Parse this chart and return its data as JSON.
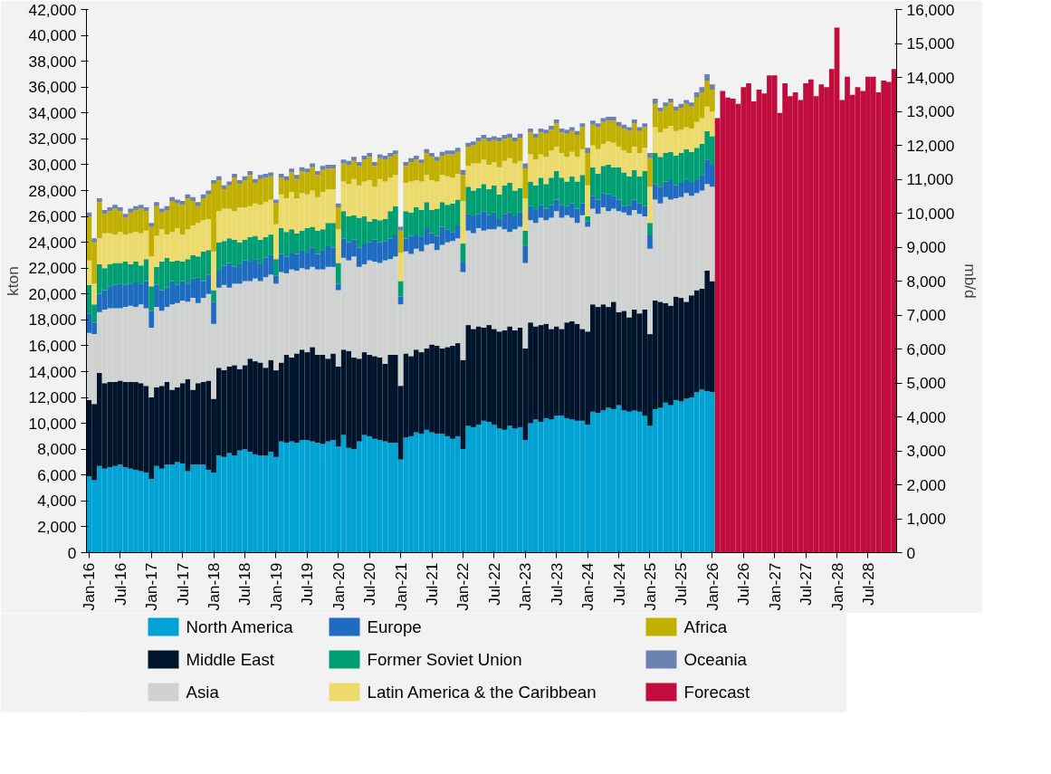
{
  "chart_data": {
    "type": "bar",
    "stacked": true,
    "ylabel": "kton",
    "y2label": "mb/d",
    "legend": "bottom",
    "grid": false,
    "categories": [
      "Jan-16",
      null,
      null,
      null,
      null,
      null,
      "Jul-16",
      null,
      null,
      null,
      null,
      null,
      "Jan-17",
      null,
      null,
      null,
      null,
      null,
      "Jul-17",
      null,
      null,
      null,
      null,
      null,
      "Jan-18",
      null,
      null,
      null,
      null,
      null,
      "Jul-18",
      null,
      null,
      null,
      null,
      null,
      "Jan-19",
      null,
      null,
      null,
      null,
      null,
      "Jul-19",
      null,
      null,
      null,
      null,
      null,
      "Jan-20",
      null,
      null,
      null,
      null,
      null,
      "Jul-20",
      null,
      null,
      null,
      null,
      null,
      "Jan-21",
      null,
      null,
      null,
      null,
      null,
      "Jul-21",
      null,
      null,
      null,
      null,
      null,
      "Jan-22",
      null,
      null,
      null,
      null,
      null,
      "Jul-22",
      null,
      null,
      null,
      null,
      null,
      "Jan-23",
      null,
      null,
      null,
      null,
      null,
      "Jul-23",
      null,
      null,
      null,
      null,
      null,
      "Jan-24",
      null,
      null,
      null,
      null,
      null,
      "Jul-24",
      null,
      null,
      null,
      null,
      null,
      "Jan-25",
      null,
      null,
      null,
      null,
      null,
      "Jul-25",
      null,
      null,
      null,
      null,
      null,
      "Jan-26",
      null,
      null,
      null,
      null,
      null,
      "Jul-26",
      null,
      null,
      null,
      null,
      null,
      "Jan-27",
      null,
      null,
      null,
      null,
      null,
      "Jul-27",
      null,
      null,
      null,
      null,
      null,
      "Jan-28",
      null,
      null,
      null,
      null,
      null,
      "Jul-28",
      null,
      null,
      null,
      null,
      null
    ],
    "ylim": [
      0,
      42000
    ],
    "yticks": [
      0,
      {
        "value": 2000,
        "label": "2,000"
      },
      {
        "value": 4000,
        "label": "4,000"
      },
      {
        "value": 6000,
        "label": "6,000"
      },
      {
        "value": 8000,
        "label": "8,000"
      },
      {
        "value": 10000,
        "label": "10,000"
      },
      {
        "value": 12000,
        "label": "12,000"
      },
      {
        "value": 14000,
        "label": "14,000"
      },
      {
        "value": 16000,
        "label": "16,000"
      },
      {
        "value": 18000,
        "label": "18,000"
      },
      {
        "value": 20000,
        "label": "20,000"
      },
      {
        "value": 22000,
        "label": "22,000"
      },
      {
        "value": 24000,
        "label": "24,000"
      },
      {
        "value": 26000,
        "label": "26,000"
      },
      {
        "value": 28000,
        "label": "28,000"
      },
      {
        "value": 30000,
        "label": "30,000"
      },
      {
        "value": 32000,
        "label": "32,000"
      },
      {
        "value": 34000,
        "label": "34,000"
      },
      {
        "value": 36000,
        "label": "36,000"
      },
      {
        "value": 38000,
        "label": "38,000"
      },
      {
        "value": 40000,
        "label": "40,000"
      },
      {
        "value": 42000,
        "label": "42,000"
      }
    ],
    "y2lim": [
      0,
      16000
    ],
    "y2ticks": [
      0,
      {
        "value": 1000,
        "label": "1,000"
      },
      {
        "value": 2000,
        "label": "2,000"
      },
      {
        "value": 3000,
        "label": "3,000"
      },
      {
        "value": 4000,
        "label": "4,000"
      },
      {
        "value": 5000,
        "label": "5,000"
      },
      {
        "value": 6000,
        "label": "6,000"
      },
      {
        "value": 7000,
        "label": "7,000"
      },
      {
        "value": 8000,
        "label": "8,000"
      },
      {
        "value": 9000,
        "label": "9,000"
      },
      {
        "value": 10000,
        "label": "10,000"
      },
      {
        "value": 11000,
        "label": "11,000"
      },
      {
        "value": 12000,
        "label": "12,000"
      },
      {
        "value": 13000,
        "label": "13,000"
      },
      {
        "value": 14000,
        "label": "14,000"
      },
      {
        "value": 15000,
        "label": "15,000"
      },
      {
        "value": 16000,
        "label": "16,000"
      }
    ],
    "series": [
      {
        "name": "North America",
        "color": "#00a3d4",
        "values": [
          5900,
          5600,
          6700,
          6500,
          6600,
          6700,
          6800,
          6600,
          6500,
          6400,
          6300,
          6200,
          5700,
          6700,
          6500,
          6800,
          6800,
          7000,
          6900,
          6300,
          6800,
          6800,
          6800,
          6400,
          6200,
          7500,
          7400,
          7700,
          7500,
          7900,
          8000,
          7800,
          7600,
          7500,
          7500,
          7800,
          7400,
          8600,
          8500,
          8600,
          8500,
          8700,
          8700,
          8600,
          8500,
          8400,
          8600,
          8700,
          8200,
          9100,
          8100,
          8000,
          8600,
          9100,
          9000,
          8800,
          8700,
          8600,
          8500,
          8500,
          7200,
          8900,
          9000,
          9300,
          9200,
          9500,
          9300,
          9200,
          9200,
          9000,
          8800,
          9000,
          8000,
          9800,
          9700,
          9900,
          10200,
          10100,
          9900,
          9600,
          9500,
          9800,
          9600,
          9700,
          8700,
          10000,
          10300,
          10100,
          10400,
          10300,
          10600,
          10600,
          10400,
          10300,
          10200,
          10200,
          9900,
          10900,
          10800,
          11000,
          11200,
          11100,
          11400,
          11000,
          10900,
          11000,
          10900,
          10600,
          9800,
          11100,
          11200,
          11600,
          11400,
          11800,
          11700,
          11900,
          12000,
          12400,
          12600,
          12500,
          12400,
          null,
          null,
          null,
          null,
          null,
          null,
          null,
          null,
          null,
          null,
          null,
          null,
          null,
          null,
          null,
          null,
          null,
          null,
          null,
          null,
          null,
          null,
          null,
          null,
          null,
          null,
          null,
          null,
          null,
          null,
          null,
          null,
          null,
          null,
          null
        ]
      },
      {
        "name": "Middle East",
        "color": "#00142b",
        "values": [
          5900,
          5900,
          7200,
          6600,
          6600,
          6500,
          6500,
          6600,
          6700,
          6800,
          6800,
          6700,
          6300,
          6100,
          6400,
          6400,
          5800,
          5800,
          6200,
          7100,
          5800,
          6300,
          6400,
          6900,
          5700,
          6800,
          6700,
          6700,
          7000,
          6300,
          6500,
          7200,
          7200,
          7200,
          6800,
          7100,
          6700,
          6100,
          6800,
          6500,
          6900,
          7000,
          6800,
          7300,
          6800,
          6900,
          6400,
          6700,
          6200,
          6600,
          7500,
          7100,
          6400,
          6400,
          6300,
          6400,
          6400,
          6000,
          6800,
          6800,
          5700,
          6500,
          6200,
          6400,
          6300,
          6300,
          6800,
          6800,
          6600,
          6900,
          7200,
          7200,
          6900,
          7800,
          7600,
          7600,
          7200,
          7500,
          7400,
          7500,
          7700,
          7700,
          7600,
          7700,
          7100,
          7800,
          7200,
          7500,
          7300,
          7000,
          6900,
          6700,
          7400,
          7600,
          7500,
          7100,
          7200,
          8300,
          8200,
          8200,
          7800,
          8300,
          7200,
          7700,
          7300,
          7800,
          7600,
          8200,
          7100,
          8400,
          8200,
          7700,
          7700,
          8000,
          8000,
          7500,
          7900,
          7900,
          7800,
          9300,
          8600,
          null,
          null,
          null,
          null,
          null,
          null,
          null,
          null,
          null,
          null,
          null,
          null,
          null,
          null,
          null,
          null,
          null,
          null,
          null,
          null,
          null,
          null,
          null,
          null,
          null,
          null,
          null,
          null,
          null,
          null,
          null,
          null,
          null,
          null,
          null
        ]
      },
      {
        "name": "Asia",
        "color": "#d0d1d1",
        "values": [
          5200,
          5400,
          4700,
          5700,
          5700,
          5700,
          5600,
          5800,
          5900,
          5800,
          6100,
          6000,
          5400,
          6200,
          5800,
          5800,
          6600,
          6500,
          6400,
          6000,
          7100,
          6200,
          6500,
          6700,
          5800,
          6200,
          6600,
          6100,
          6300,
          6600,
          6500,
          6000,
          6400,
          6300,
          7000,
          6600,
          6700,
          7000,
          6300,
          6800,
          6400,
          6300,
          6400,
          6200,
          6600,
          6600,
          7100,
          6700,
          5900,
          7100,
          7000,
          7800,
          7100,
          6800,
          7300,
          7300,
          7300,
          8000,
          7400,
          7600,
          6300,
          7900,
          7900,
          7800,
          7800,
          8000,
          7800,
          7400,
          8000,
          8100,
          8100,
          8100,
          6800,
          7300,
          7400,
          7600,
          7500,
          7400,
          7700,
          8100,
          7800,
          7300,
          7800,
          7800,
          6600,
          7900,
          8000,
          8300,
          8000,
          8600,
          8900,
          8600,
          8300,
          8000,
          7800,
          8800,
          8100,
          7400,
          7200,
          7500,
          7400,
          7200,
          7800,
          7600,
          7900,
          7700,
          7700,
          7200,
          6600,
          7800,
          7600,
          8200,
          8200,
          7600,
          7800,
          8400,
          7700,
          7500,
          7600,
          6700,
          7300,
          null,
          null,
          null,
          null,
          null,
          null,
          null,
          null,
          null,
          null,
          null,
          null,
          null,
          null,
          null,
          null,
          null,
          null,
          null,
          null,
          null,
          null,
          null,
          null,
          null,
          null,
          null,
          null,
          null,
          null,
          null,
          null,
          null,
          null,
          null
        ]
      },
      {
        "name": "Europe",
        "color": "#1f6bbf",
        "values": [
          1500,
          900,
          1400,
          1500,
          1700,
          1800,
          1900,
          1700,
          1700,
          1900,
          1600,
          2100,
          1300,
          1700,
          1600,
          1500,
          1800,
          1400,
          1500,
          1400,
          1500,
          2000,
          1300,
          1500,
          1700,
          1300,
          1500,
          1900,
          1300,
          1500,
          1600,
          1500,
          1500,
          1300,
          1500,
          1500,
          600,
          1400,
          1300,
          1300,
          1300,
          1400,
          1300,
          1500,
          1200,
          1500,
          1600,
          1500,
          500,
          1500,
          1400,
          1300,
          1500,
          1600,
          1400,
          1700,
          1600,
          1500,
          1600,
          1700,
          600,
          1000,
          1400,
          1100,
          1100,
          1300,
          800,
          1100,
          1400,
          1000,
          700,
          1000,
          800,
          1300,
          1300,
          1100,
          1500,
          1100,
          1300,
          600,
          1200,
          1500,
          1000,
          1100,
          1300,
          1100,
          1000,
          1000,
          900,
          1000,
          900,
          1000,
          700,
          1100,
          1100,
          900,
          400,
          1000,
          1100,
          1100,
          1300,
          1000,
          900,
          500,
          800,
          800,
          800,
          800,
          1100,
          1200,
          1300,
          1200,
          1500,
          1000,
          1100,
          1100,
          1000,
          1000,
          1200,
          1900,
          1700,
          null,
          null,
          null,
          null,
          null,
          null,
          null,
          null,
          null,
          null,
          null,
          null,
          null,
          null,
          null,
          null,
          null,
          null,
          null,
          null,
          null,
          null,
          null,
          null,
          null,
          null,
          null,
          null,
          null,
          null,
          null,
          null,
          null,
          null,
          null
        ]
      },
      {
        "name": "Former Soviet Union",
        "color": "#009e73",
        "values": [
          2200,
          1400,
          2300,
          1700,
          1700,
          1700,
          1600,
          1800,
          1500,
          1600,
          1400,
          1700,
          1900,
          1400,
          2200,
          2300,
          1500,
          1900,
          1500,
          1900,
          1800,
          1600,
          2300,
          1900,
          900,
          2200,
          1900,
          1900,
          2100,
          1700,
          1600,
          1900,
          1800,
          1900,
          1600,
          1600,
          1300,
          2000,
          1900,
          1800,
          1600,
          1500,
          1900,
          1600,
          1800,
          1600,
          1800,
          1900,
          1600,
          2100,
          2000,
          1900,
          2300,
          2100,
          1600,
          1600,
          1700,
          1700,
          2100,
          2200,
          1200,
          2100,
          1800,
          2100,
          2100,
          2000,
          1800,
          2100,
          1900,
          1900,
          2200,
          2000,
          1400,
          2100,
          2000,
          2000,
          2100,
          2000,
          2100,
          1900,
          2200,
          2300,
          2000,
          1900,
          1200,
          1900,
          1900,
          2100,
          1900,
          2100,
          2200,
          2100,
          1900,
          2100,
          2100,
          2200,
          400,
          2200,
          2000,
          2100,
          2300,
          2200,
          2500,
          2600,
          2200,
          2300,
          2100,
          2700,
          900,
          2400,
          2300,
          2200,
          2200,
          2300,
          2300,
          2300,
          2400,
          2500,
          2400,
          2200,
          2200,
          null,
          null,
          null,
          null,
          null,
          null,
          null,
          null,
          null,
          null,
          null,
          null,
          null,
          null,
          null,
          null,
          null,
          null,
          null,
          null,
          null,
          null,
          null,
          null,
          null,
          null,
          null,
          null,
          null,
          null,
          null,
          null,
          null,
          null,
          null
        ]
      },
      {
        "name": "Latin America & the Caribbean",
        "color": "#ecdb6c",
        "values": [
          1900,
          1600,
          2000,
          2700,
          2400,
          2200,
          2400,
          2100,
          2400,
          2300,
          2500,
          2200,
          2300,
          2400,
          2500,
          1800,
          2300,
          2500,
          2100,
          2300,
          2300,
          2600,
          2400,
          2400,
          3000,
          2400,
          2500,
          2300,
          2200,
          2700,
          2500,
          2400,
          2500,
          2700,
          2700,
          2700,
          2700,
          2600,
          2600,
          2900,
          2700,
          2900,
          2600,
          2800,
          2600,
          2900,
          2600,
          2600,
          2600,
          2300,
          2500,
          2800,
          2500,
          2700,
          3200,
          2500,
          3200,
          2900,
          2600,
          2400,
          2200,
          2200,
          2400,
          2100,
          2200,
          2100,
          2300,
          2100,
          2100,
          2200,
          2000,
          2000,
          3300,
          1600,
          2100,
          1900,
          1900,
          1900,
          1800,
          2100,
          1900,
          1900,
          2100,
          2100,
          2500,
          2100,
          2000,
          1800,
          2100,
          2100,
          1900,
          1900,
          1900,
          1900,
          1900,
          2000,
          2400,
          1700,
          1900,
          1700,
          1800,
          1900,
          1600,
          1700,
          1800,
          1800,
          1800,
          1800,
          2800,
          2000,
          1900,
          1900,
          2000,
          1900,
          1800,
          1700,
          1800,
          2000,
          2000,
          1900,
          1900,
          null,
          null,
          null,
          null,
          null,
          null,
          null,
          null,
          null,
          null,
          null,
          null,
          null,
          null,
          null,
          null,
          null,
          null,
          null,
          null,
          null,
          null,
          null,
          null,
          null,
          null,
          null,
          null,
          null,
          null,
          null,
          null,
          null,
          null,
          null
        ]
      },
      {
        "name": "Africa",
        "color": "#c2b000",
        "values": [
          3400,
          3200,
          2800,
          1500,
          1700,
          2000,
          1600,
          1300,
          1600,
          1700,
          1900,
          1500,
          2300,
          2300,
          1300,
          1900,
          2400,
          1900,
          2300,
          2400,
          1900,
          1300,
          1700,
          1900,
          5200,
          2400,
          1500,
          1800,
          2600,
          1800,
          2100,
          2400,
          1600,
          2000,
          1900,
          1800,
          1600,
          1300,
          1400,
          1500,
          1500,
          1700,
          1700,
          1800,
          1700,
          1700,
          1600,
          1600,
          1700,
          1400,
          1500,
          1400,
          1500,
          1700,
          1800,
          1600,
          1600,
          1700,
          1600,
          1600,
          1700,
          1300,
          1500,
          1600,
          1400,
          1700,
          1800,
          1600,
          1500,
          1700,
          1800,
          1700,
          2000,
          1500,
          1400,
          1700,
          1600,
          1800,
          1700,
          2000,
          1700,
          1600,
          1700,
          1800,
          2300,
          1700,
          1700,
          1700,
          1800,
          1600,
          1800,
          1600,
          1800,
          1600,
          1700,
          1700,
          2500,
          1600,
          1700,
          1700,
          1600,
          1700,
          1600,
          1700,
          1700,
          1800,
          1700,
          1600,
          2200,
          1800,
          1600,
          1700,
          1800,
          1600,
          1700,
          1800,
          1700,
          1900,
          2000,
          2000,
          1700,
          null,
          null,
          null,
          null,
          null,
          null,
          null,
          null,
          null,
          null,
          null,
          null,
          null,
          null,
          null,
          null,
          null,
          null,
          null,
          null,
          null,
          null,
          null,
          null,
          null,
          null,
          null,
          null,
          null,
          null,
          null,
          null,
          null,
          null,
          null
        ]
      },
      {
        "name": "Oceania",
        "color": "#6b82b0",
        "values": [
          300,
          300,
          300,
          300,
          300,
          300,
          300,
          300,
          300,
          300,
          300,
          300,
          300,
          300,
          300,
          300,
          300,
          300,
          300,
          300,
          300,
          300,
          300,
          300,
          300,
          300,
          300,
          300,
          300,
          300,
          300,
          300,
          300,
          300,
          300,
          300,
          300,
          300,
          300,
          300,
          300,
          300,
          300,
          300,
          300,
          300,
          300,
          300,
          300,
          300,
          300,
          300,
          300,
          300,
          300,
          300,
          300,
          300,
          300,
          300,
          300,
          300,
          300,
          300,
          300,
          300,
          300,
          300,
          300,
          300,
          300,
          300,
          400,
          300,
          300,
          300,
          300,
          300,
          300,
          300,
          300,
          300,
          300,
          300,
          400,
          300,
          300,
          300,
          300,
          300,
          300,
          300,
          300,
          300,
          300,
          300,
          400,
          300,
          300,
          300,
          300,
          300,
          300,
          300,
          300,
          300,
          300,
          300,
          400,
          400,
          300,
          300,
          300,
          300,
          300,
          300,
          300,
          400,
          400,
          500,
          400,
          null,
          null,
          null,
          null,
          null,
          null,
          null,
          null,
          null,
          null,
          null,
          null,
          null,
          null,
          null,
          null,
          null,
          null,
          null,
          null,
          null,
          null,
          null,
          null,
          null,
          null,
          null,
          null,
          null,
          null,
          null,
          null,
          null,
          null,
          null
        ]
      },
      {
        "name": "Forecast",
        "color": "#c00d3d",
        "values": [
          null,
          null,
          null,
          null,
          null,
          null,
          null,
          null,
          null,
          null,
          null,
          null,
          null,
          null,
          null,
          null,
          null,
          null,
          null,
          null,
          null,
          null,
          null,
          null,
          null,
          null,
          null,
          null,
          null,
          null,
          null,
          null,
          null,
          null,
          null,
          null,
          null,
          null,
          null,
          null,
          null,
          null,
          null,
          null,
          null,
          null,
          null,
          null,
          null,
          null,
          null,
          null,
          null,
          null,
          null,
          null,
          null,
          null,
          null,
          null,
          null,
          null,
          null,
          null,
          null,
          null,
          null,
          null,
          null,
          null,
          null,
          null,
          null,
          null,
          null,
          null,
          null,
          null,
          null,
          null,
          null,
          null,
          null,
          null,
          null,
          null,
          null,
          null,
          null,
          null,
          null,
          null,
          null,
          null,
          null,
          null,
          null,
          null,
          null,
          null,
          null,
          null,
          null,
          null,
          null,
          null,
          null,
          null,
          null,
          null,
          null,
          null,
          null,
          null,
          null,
          null,
          null,
          null,
          null,
          null,
          null,
          33600,
          35700,
          35200,
          35100,
          34700,
          36000,
          36300,
          34900,
          35800,
          35500,
          36900,
          36900,
          34000,
          36300,
          35300,
          35600,
          35000,
          36300,
          36600,
          35300,
          36200,
          36000,
          37400,
          40600,
          35000,
          36800,
          35400,
          36000,
          35700,
          36800,
          36800,
          35600,
          36500,
          36400,
          37400
        ]
      }
    ]
  }
}
